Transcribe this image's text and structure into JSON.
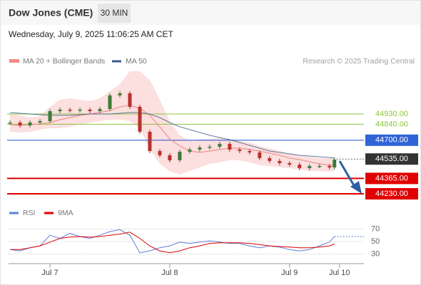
{
  "header": {
    "title": "Dow Jones (CME)",
    "interval": "30 MIN",
    "timestamp": "Wednesday, July 9, 2025 11:06:25 AM CET"
  },
  "chart_data": [
    {
      "type": "candlestick",
      "source": "Research © 2025 Trading Central",
      "x": [
        -8,
        -6,
        -4,
        -2,
        0,
        2,
        4,
        6,
        8,
        10,
        12,
        14,
        16,
        18,
        20,
        22,
        24,
        26,
        28,
        30,
        32,
        34,
        36,
        38,
        40,
        42,
        44,
        46,
        48,
        50,
        52,
        54,
        56,
        57
      ],
      "close": [
        44855,
        44830,
        44855,
        44868,
        44955,
        44968,
        44961,
        44968,
        44955,
        44974,
        45093,
        45111,
        44993,
        44774,
        44605,
        44568,
        44524,
        44599,
        44618,
        44636,
        44643,
        44668,
        44618,
        44605,
        44593,
        44543,
        44518,
        44499,
        44486,
        44455,
        44474,
        44474,
        44461,
        44530
      ],
      "up_color": "#3f7a37",
      "down_color": "#b8322e",
      "series": [
        {
          "name": "MA 20 + Bollinger Bands",
          "color": "#f08a8a",
          "band_color": "#fbd9d9",
          "values": [
            44836,
            44830,
            44836,
            44843,
            44855,
            44880,
            44899,
            44918,
            44930,
            44943,
            44961,
            44993,
            45005,
            44980,
            44918,
            44818,
            44711,
            44649,
            44605,
            44593,
            44605,
            44618,
            44630,
            44630,
            44618,
            44605,
            44586,
            44568,
            44543,
            44530,
            44511,
            44493,
            44480,
            44480
          ],
          "upper": [
            44930,
            44918,
            44899,
            44911,
            44993,
            45055,
            45068,
            45055,
            45043,
            45068,
            45130,
            45193,
            45305,
            45305,
            45230,
            45055,
            44868,
            44743,
            44693,
            44711,
            44711,
            44724,
            44711,
            44693,
            44680,
            44649,
            44630,
            44605,
            44586,
            44568,
            44555,
            44543,
            44543,
            44555
          ],
          "lower": [
            44774,
            44768,
            44774,
            44793,
            44805,
            44805,
            44818,
            44836,
            44855,
            44868,
            44880,
            44880,
            44868,
            44805,
            44618,
            44493,
            44430,
            44399,
            44430,
            44461,
            44493,
            44505,
            44524,
            44524,
            44505,
            44480,
            44474,
            44461,
            44455,
            44443,
            44430,
            44430,
            44424,
            44430
          ]
        },
        {
          "name": "MA 50",
          "color": "#3d5a8c",
          "values": [
            44943,
            44936,
            44930,
            44924,
            44918,
            44918,
            44918,
            44924,
            44930,
            44930,
            44930,
            44936,
            44943,
            44943,
            44930,
            44899,
            44855,
            44818,
            44793,
            44768,
            44743,
            44724,
            44705,
            44680,
            44655,
            44630,
            44605,
            44593,
            44580,
            44568,
            44561,
            44555,
            44549,
            44543
          ]
        }
      ],
      "levels": [
        {
          "value": 44930,
          "label": "44930.00",
          "color": "#8dc63f",
          "style": "text"
        },
        {
          "value": 44840,
          "label": "44840.00",
          "color": "#8dc63f",
          "style": "text"
        },
        {
          "value": 44700,
          "label": "44700.00",
          "color": "#2f63d6",
          "style": "box"
        },
        {
          "value": 44535,
          "label": "44535.00",
          "color": "#333333",
          "style": "current"
        },
        {
          "value": 44365,
          "label": "44365.00",
          "color": "#e00000",
          "style": "box"
        },
        {
          "value": 44230,
          "label": "44230.00",
          "color": "#e00000",
          "style": "box"
        }
      ],
      "xlim": [
        -8.3,
        62.9
      ],
      "ylim": [
        44150,
        45340
      ]
    },
    {
      "type": "line",
      "x": [
        -8,
        -6,
        -4,
        -2,
        0,
        2,
        4,
        6,
        8,
        10,
        12,
        14,
        16,
        18,
        20,
        22,
        24,
        26,
        28,
        30,
        32,
        34,
        36,
        38,
        40,
        42,
        44,
        46,
        48,
        50,
        52,
        54,
        56,
        57
      ],
      "series": [
        {
          "name": "RSI",
          "color": "#5b7fd6",
          "values": [
            37,
            35,
            40,
            43,
            60,
            55,
            63,
            58,
            55,
            60,
            66,
            69,
            60,
            32,
            35,
            40,
            43,
            49,
            47,
            49,
            51,
            49,
            47,
            47,
            43,
            40,
            43,
            41,
            37,
            35,
            37,
            43,
            49,
            58
          ]
        },
        {
          "name": "9MA",
          "color": "#e00000",
          "values": [
            37,
            37,
            40,
            43,
            49,
            55,
            57,
            58,
            57,
            58,
            60,
            62,
            65,
            55,
            43,
            35,
            32,
            35,
            40,
            43,
            47,
            48,
            48,
            48,
            47,
            45,
            43,
            42,
            41,
            40,
            40,
            41,
            43,
            46
          ]
        }
      ],
      "xlim": [
        -8.3,
        62.9
      ],
      "ylim": [
        15,
        88
      ],
      "yticks": [
        70,
        50,
        30
      ],
      "xticks": [
        {
          "value": 0,
          "label": "Jul 7"
        },
        {
          "value": 24,
          "label": "Jul 8"
        },
        {
          "value": 48,
          "label": "Jul 9"
        },
        {
          "value": 58,
          "label": "Jul 10"
        }
      ]
    }
  ]
}
